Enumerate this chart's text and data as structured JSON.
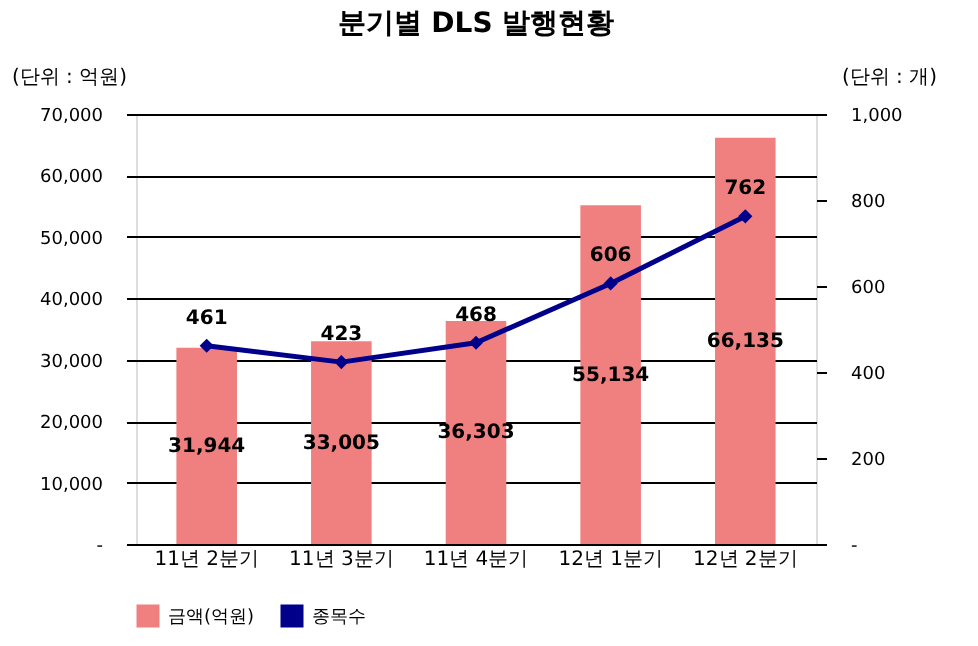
{
  "chart_data": {
    "type": "bar",
    "title": "분기별 DLS 발행현황",
    "ylabel": "(단위 : 억원)",
    "y2label": "(단위 : 개)",
    "categories": [
      "11년 2분기",
      "11년 3분기",
      "11년 4분기",
      "12년 1분기",
      "12년 2분기"
    ],
    "series": [
      {
        "name": "금액(억원)",
        "color": "#f08080",
        "values": [
          31944,
          33005,
          36303,
          55134,
          66135
        ],
        "value_labels": [
          "31,944",
          "33,005",
          "36,303",
          "55,134",
          "66,135"
        ]
      },
      {
        "name": "종목수",
        "type": "line",
        "color": "#00008b",
        "axis": "y2",
        "marker": "diamond",
        "values": [
          461,
          423,
          468,
          606,
          762
        ],
        "value_labels": [
          "461",
          "423",
          "468",
          "606",
          "762"
        ]
      }
    ],
    "ylim": [
      0,
      70000
    ],
    "yticks": [
      {
        "value": 0,
        "label": "-"
      },
      {
        "value": 10000,
        "label": "10,000"
      },
      {
        "value": 20000,
        "label": "20,000"
      },
      {
        "value": 30000,
        "label": "30,000"
      },
      {
        "value": 40000,
        "label": "40,000"
      },
      {
        "value": 50000,
        "label": "50,000"
      },
      {
        "value": 60000,
        "label": "60,000"
      },
      {
        "value": 70000,
        "label": "70,000"
      }
    ],
    "y2lim": [
      0,
      1000
    ],
    "y2ticks": [
      {
        "value": 0,
        "label": "-"
      },
      200,
      400,
      600,
      800,
      {
        "value": 1000,
        "label": "1,000"
      }
    ],
    "grid": "y",
    "legend": "bottom"
  }
}
